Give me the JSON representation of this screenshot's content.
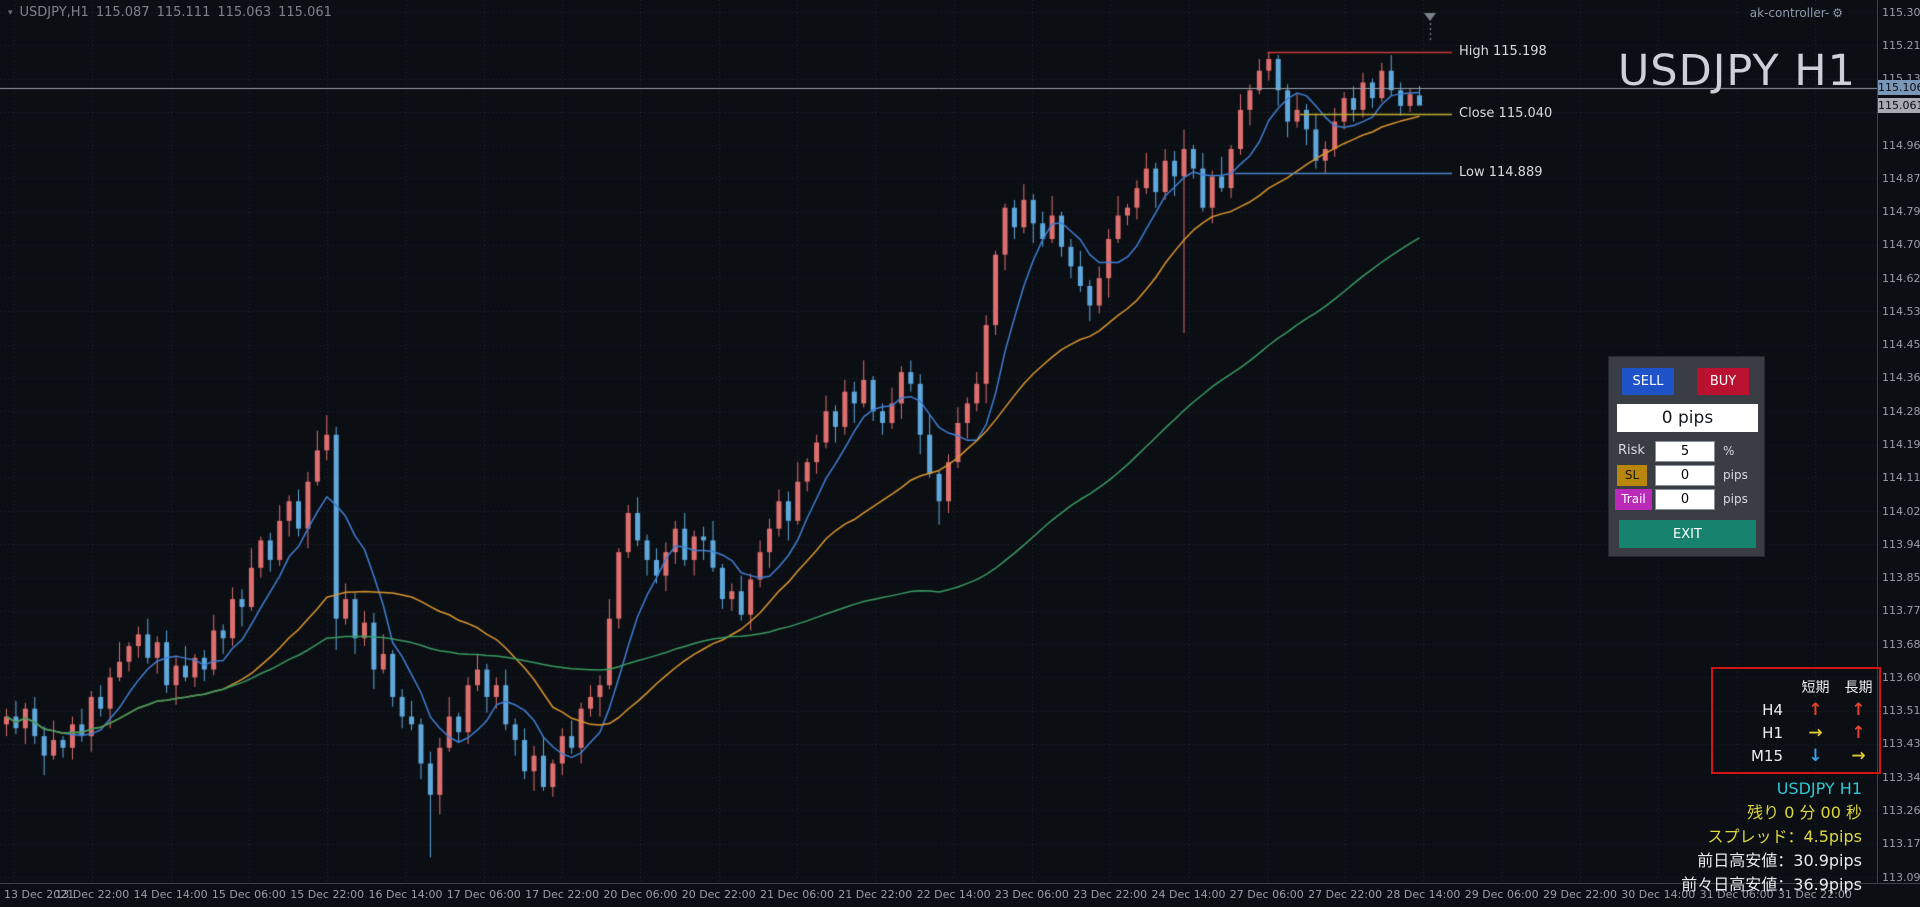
{
  "window": {
    "quote": {
      "symbol_period": "USDJPY,H1",
      "open": "115.087",
      "high": "115.111",
      "low": "115.063",
      "close": "115.061"
    },
    "symbol_marker_icon": "▾",
    "controller_label": "ak-controller-",
    "gear_icon": "⚙",
    "watermark": "USDJPY H1"
  },
  "chart_data": {
    "type": "candlestick",
    "title": "USDJPY H1",
    "y_axis": {
      "min": 113.09,
      "max": 115.3,
      "tick_step": 0.085
    },
    "x_labels": [
      "13 Dec 2021",
      "13 Dec 22:00",
      "14 Dec 14:00",
      "15 Dec 06:00",
      "15 Dec 22:00",
      "16 Dec 14:00",
      "17 Dec 06:00",
      "17 Dec 22:00",
      "20 Dec 06:00",
      "20 Dec 22:00",
      "21 Dec 06:00",
      "21 Dec 22:00",
      "22 Dec 14:00",
      "23 Dec 06:00",
      "23 Dec 22:00",
      "24 Dec 14:00",
      "27 Dec 06:00",
      "27 Dec 22:00",
      "28 Dec 14:00",
      "29 Dec 06:00",
      "29 Dec 22:00",
      "30 Dec 14:00",
      "31 Dec 06:00",
      "31 Dec 22:00"
    ],
    "series": [
      {
        "name": "USDJPY",
        "candles": [
          [
            113.48,
            113.52,
            113.45,
            113.5
          ],
          [
            113.5,
            113.54,
            113.455,
            113.47
          ],
          [
            113.47,
            113.535,
            113.43,
            113.52
          ],
          [
            113.52,
            113.55,
            113.43,
            113.45
          ],
          [
            113.45,
            113.475,
            113.35,
            113.4
          ],
          [
            113.4,
            113.49,
            113.39,
            113.44
          ],
          [
            113.44,
            113.45,
            113.395,
            113.42
          ],
          [
            113.42,
            113.5,
            113.39,
            113.48
          ],
          [
            113.48,
            113.52,
            113.435,
            113.45
          ],
          [
            113.45,
            113.565,
            113.41,
            113.55
          ],
          [
            113.55,
            113.58,
            113.5,
            113.52
          ],
          [
            113.52,
            113.625,
            113.47,
            113.6
          ],
          [
            113.6,
            113.69,
            113.59,
            113.64
          ],
          [
            113.64,
            113.69,
            113.615,
            113.68
          ],
          [
            113.68,
            113.73,
            113.65,
            113.71
          ],
          [
            113.71,
            113.75,
            113.635,
            113.65
          ],
          [
            113.65,
            113.705,
            113.61,
            113.69
          ],
          [
            113.69,
            113.72,
            113.56,
            113.58
          ],
          [
            113.58,
            113.655,
            113.53,
            113.63
          ],
          [
            113.63,
            113.68,
            113.59,
            113.6
          ],
          [
            113.6,
            113.66,
            113.575,
            113.65
          ],
          [
            113.65,
            113.67,
            113.59,
            113.62
          ],
          [
            113.62,
            113.76,
            113.605,
            113.72
          ],
          [
            113.72,
            113.735,
            113.66,
            113.7
          ],
          [
            113.7,
            113.83,
            113.68,
            113.8
          ],
          [
            113.8,
            113.825,
            113.73,
            113.78
          ],
          [
            113.78,
            113.93,
            113.77,
            113.88
          ],
          [
            113.88,
            113.96,
            113.855,
            113.95
          ],
          [
            113.95,
            113.97,
            113.87,
            113.9
          ],
          [
            113.9,
            114.04,
            113.885,
            114.0
          ],
          [
            114.0,
            114.065,
            113.96,
            114.05
          ],
          [
            114.05,
            114.08,
            113.96,
            113.98
          ],
          [
            113.98,
            114.125,
            113.93,
            114.1
          ],
          [
            114.1,
            114.23,
            114.09,
            114.18
          ],
          [
            114.18,
            114.27,
            114.155,
            114.22
          ],
          [
            114.22,
            114.24,
            113.67,
            113.75
          ],
          [
            113.75,
            113.84,
            113.735,
            113.8
          ],
          [
            113.8,
            113.815,
            113.66,
            113.7
          ],
          [
            113.7,
            113.77,
            113.68,
            113.74
          ],
          [
            113.74,
            113.765,
            113.57,
            113.62
          ],
          [
            113.62,
            113.71,
            113.61,
            113.66
          ],
          [
            113.66,
            113.67,
            113.525,
            113.55
          ],
          [
            113.55,
            113.57,
            113.47,
            113.5
          ],
          [
            113.5,
            113.54,
            113.465,
            113.48
          ],
          [
            113.48,
            113.495,
            113.34,
            113.38
          ],
          [
            113.38,
            113.41,
            113.14,
            113.3
          ],
          [
            113.3,
            113.445,
            113.25,
            113.42
          ],
          [
            113.42,
            113.55,
            113.41,
            113.5
          ],
          [
            113.5,
            113.51,
            113.435,
            113.46
          ],
          [
            113.46,
            113.6,
            113.43,
            113.58
          ],
          [
            113.58,
            113.66,
            113.565,
            113.62
          ],
          [
            113.62,
            113.635,
            113.51,
            113.55
          ],
          [
            113.55,
            113.6,
            113.52,
            113.58
          ],
          [
            113.58,
            113.62,
            113.465,
            113.48
          ],
          [
            113.48,
            113.495,
            113.4,
            113.44
          ],
          [
            113.44,
            113.47,
            113.34,
            113.36
          ],
          [
            113.36,
            113.425,
            113.31,
            113.4
          ],
          [
            113.4,
            113.45,
            113.31,
            113.32
          ],
          [
            113.32,
            113.39,
            113.295,
            113.38
          ],
          [
            113.38,
            113.47,
            113.35,
            113.45
          ],
          [
            113.45,
            113.49,
            113.405,
            113.42
          ],
          [
            113.42,
            113.535,
            113.38,
            113.52
          ],
          [
            113.52,
            113.58,
            113.5,
            113.55
          ],
          [
            113.55,
            113.605,
            113.5,
            113.58
          ],
          [
            113.58,
            113.8,
            113.57,
            113.75
          ],
          [
            113.75,
            113.93,
            113.725,
            113.92
          ],
          [
            113.92,
            114.04,
            113.905,
            114.02
          ],
          [
            114.02,
            114.06,
            113.935,
            113.95
          ],
          [
            113.95,
            113.965,
            113.86,
            113.9
          ],
          [
            113.9,
            113.93,
            113.84,
            113.86
          ],
          [
            113.86,
            113.945,
            113.82,
            113.92
          ],
          [
            113.92,
            114.0,
            113.89,
            113.98
          ],
          [
            113.98,
            114.02,
            113.885,
            113.9
          ],
          [
            113.9,
            113.975,
            113.86,
            113.96
          ],
          [
            113.96,
            113.985,
            113.9,
            113.95
          ],
          [
            113.95,
            114.0,
            113.87,
            113.88
          ],
          [
            113.88,
            113.89,
            113.775,
            113.8
          ],
          [
            113.8,
            113.84,
            113.77,
            113.82
          ],
          [
            113.82,
            113.86,
            113.745,
            113.76
          ],
          [
            113.76,
            113.865,
            113.72,
            113.85
          ],
          [
            113.85,
            113.95,
            113.83,
            113.92
          ],
          [
            113.92,
            114.005,
            113.88,
            113.98
          ],
          [
            113.98,
            114.08,
            113.96,
            114.05
          ],
          [
            114.05,
            114.075,
            113.95,
            114.0
          ],
          [
            114.0,
            114.15,
            113.99,
            114.1
          ],
          [
            114.1,
            114.16,
            114.075,
            114.15
          ],
          [
            114.15,
            114.22,
            114.12,
            114.2
          ],
          [
            114.2,
            114.32,
            114.185,
            114.28
          ],
          [
            114.28,
            114.295,
            114.2,
            114.24
          ],
          [
            114.24,
            114.36,
            114.22,
            114.33
          ],
          [
            114.33,
            114.355,
            114.25,
            114.3
          ],
          [
            114.3,
            114.41,
            114.29,
            114.36
          ],
          [
            114.36,
            114.37,
            114.255,
            114.28
          ],
          [
            114.28,
            114.3,
            114.22,
            114.25
          ],
          [
            114.25,
            114.34,
            114.235,
            114.3
          ],
          [
            114.3,
            114.395,
            114.26,
            114.38
          ],
          [
            114.38,
            114.41,
            114.33,
            114.35
          ],
          [
            114.35,
            114.375,
            114.17,
            114.22
          ],
          [
            114.22,
            114.27,
            114.11,
            114.12
          ],
          [
            114.12,
            114.13,
            113.99,
            114.05
          ],
          [
            114.05,
            114.17,
            114.02,
            114.15
          ],
          [
            114.15,
            114.29,
            114.135,
            114.25
          ],
          [
            114.25,
            114.315,
            114.21,
            114.3
          ],
          [
            114.3,
            114.38,
            114.28,
            114.35
          ],
          [
            114.35,
            114.525,
            114.3,
            114.5
          ],
          [
            114.5,
            114.69,
            114.475,
            114.68
          ],
          [
            114.68,
            114.81,
            114.64,
            114.8
          ],
          [
            114.8,
            114.82,
            114.72,
            114.75
          ],
          [
            114.75,
            114.86,
            114.735,
            114.82
          ],
          [
            114.82,
            114.835,
            114.71,
            114.76
          ],
          [
            114.76,
            114.79,
            114.7,
            114.72
          ],
          [
            114.72,
            114.83,
            114.71,
            114.78
          ],
          [
            114.78,
            114.79,
            114.675,
            114.7
          ],
          [
            114.7,
            114.72,
            114.62,
            114.65
          ],
          [
            114.65,
            114.69,
            114.585,
            114.6
          ],
          [
            114.6,
            114.615,
            114.51,
            114.55
          ],
          [
            114.55,
            114.65,
            114.53,
            114.62
          ],
          [
            114.62,
            114.745,
            114.57,
            114.72
          ],
          [
            114.72,
            114.83,
            114.71,
            114.78
          ],
          [
            114.78,
            114.81,
            114.755,
            114.8
          ],
          [
            114.8,
            114.87,
            114.77,
            114.85
          ],
          [
            114.85,
            114.94,
            114.835,
            114.9
          ],
          [
            114.9,
            114.915,
            114.8,
            114.84
          ],
          [
            114.84,
            114.95,
            114.82,
            114.92
          ],
          [
            114.92,
            114.945,
            114.83,
            114.88
          ],
          [
            114.88,
            115.0,
            114.48,
            114.95
          ],
          [
            114.95,
            114.96,
            114.875,
            114.9
          ],
          [
            114.9,
            114.94,
            114.79,
            114.8
          ],
          [
            114.8,
            114.895,
            114.76,
            114.88
          ],
          [
            114.88,
            114.93,
            114.84,
            114.85
          ],
          [
            114.85,
            114.96,
            114.825,
            114.95
          ],
          [
            114.95,
            115.09,
            114.935,
            115.05
          ],
          [
            115.05,
            115.115,
            115.01,
            115.1
          ],
          [
            115.1,
            115.18,
            115.09,
            115.15
          ],
          [
            115.15,
            115.198,
            115.125,
            115.18
          ],
          [
            115.18,
            115.19,
            115.06,
            115.1
          ],
          [
            115.1,
            115.115,
            114.98,
            115.02
          ],
          [
            115.02,
            115.09,
            115.005,
            115.05
          ],
          [
            115.05,
            115.065,
            114.96,
            115.0
          ],
          [
            115.0,
            115.04,
            114.9,
            114.92
          ],
          [
            114.92,
            114.97,
            114.889,
            114.95
          ],
          [
            114.95,
            115.055,
            114.93,
            115.02
          ],
          [
            115.02,
            115.095,
            115.0,
            115.08
          ],
          [
            115.08,
            115.11,
            115.02,
            115.05
          ],
          [
            115.05,
            115.145,
            115.03,
            115.12
          ],
          [
            115.12,
            115.13,
            115.055,
            115.08
          ],
          [
            115.08,
            115.17,
            115.07,
            115.15
          ],
          [
            115.15,
            115.19,
            115.085,
            115.1
          ],
          [
            115.1,
            115.12,
            115.035,
            115.06
          ],
          [
            115.06,
            115.105,
            115.045,
            115.09
          ],
          [
            115.087,
            115.111,
            115.063,
            115.061
          ]
        ]
      }
    ],
    "moving_averages": [
      {
        "name": "fast-ma",
        "period": 7,
        "color": "#3f7fd4"
      },
      {
        "name": "mid-ma",
        "period": 24,
        "color": "#d9952f"
      },
      {
        "name": "slow-ma",
        "period": 65,
        "color": "#3a9a62"
      }
    ],
    "levels": {
      "high": {
        "label": "High 115.198",
        "value": 115.198,
        "color": "#c63a3a"
      },
      "close": {
        "label": "Close 115.040",
        "value": 115.04,
        "color": "#bfae2e"
      },
      "low": {
        "label": "Low 114.889",
        "value": 114.889,
        "color": "#4a86c8"
      }
    },
    "current": {
      "ask": "115.106",
      "bid": "115.061",
      "ask_value": 115.106,
      "bid_value": 115.061
    },
    "colors": {
      "bull": "#de6f6f",
      "bear": "#5fa8dc",
      "background": "#0b0e13",
      "grid": "#5a6a80"
    }
  },
  "trade_panel": {
    "sell_label": "SELL",
    "buy_label": "BUY",
    "pips_display": "0 pips",
    "risk_label": "Risk",
    "risk_value": "5",
    "risk_unit": "%",
    "sl_label": "SL",
    "sl_value": "0",
    "sl_unit": "pips",
    "trail_label": "Trail",
    "trail_value": "0",
    "trail_unit": "pips",
    "exit_label": "EXIT"
  },
  "trend_box": {
    "col_short": "短期",
    "col_long": "長期",
    "rows": [
      {
        "label": "H4",
        "short": "up",
        "long": "up"
      },
      {
        "label": "H1",
        "short": "right",
        "long": "up"
      },
      {
        "label": "M15",
        "short": "down",
        "long": "right"
      }
    ],
    "glyphs": {
      "up": "↑",
      "right": "→",
      "down": "↓"
    },
    "arrow_colors": {
      "up": "#e3432b",
      "right": "#ddc832",
      "down": "#35a3e8"
    }
  },
  "info_panel": {
    "symbol_line": "USDJPY H1",
    "timer_line": "残り 0 分 00 秒",
    "spread_line": "スプレッド：4.5pips",
    "prev_day_line": "前日高安値：30.9pips",
    "prev2_day_line": "前々日高安値：36.9pips"
  }
}
